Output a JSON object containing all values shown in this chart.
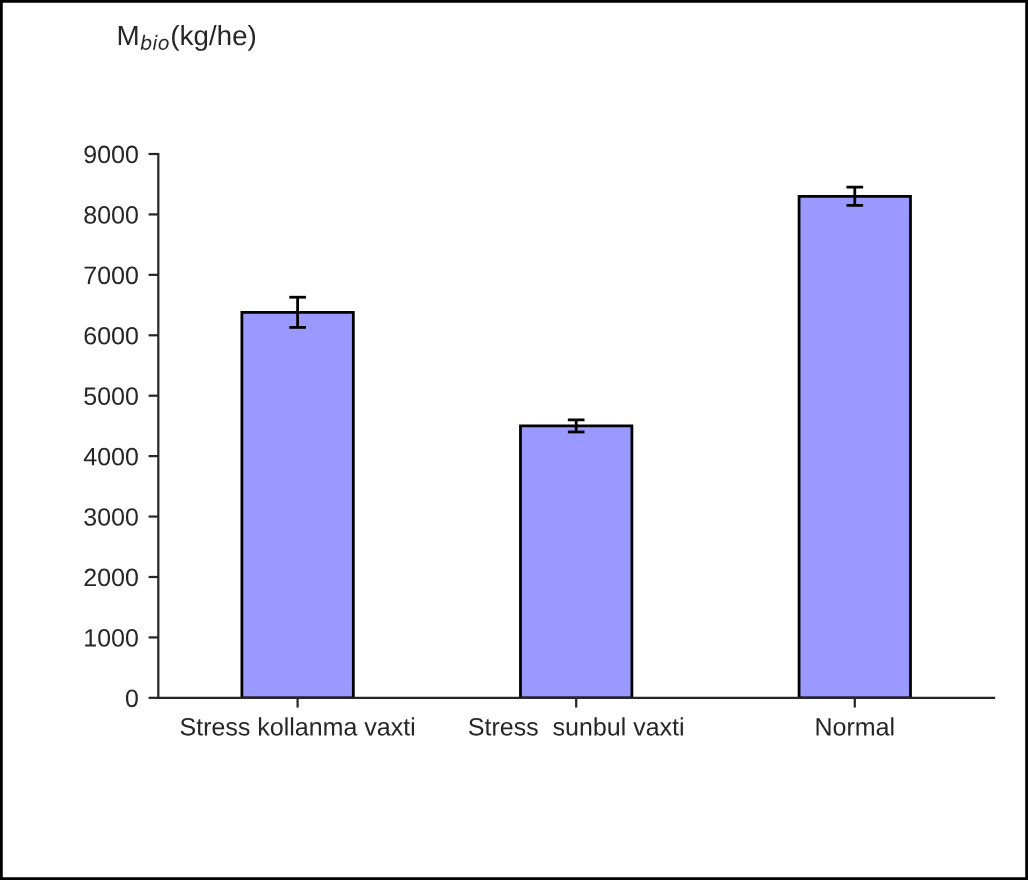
{
  "chart_data": {
    "type": "bar",
    "ylabel": "M$_{bio}$(kg/he)",
    "categories": [
      "Stress kollanma vaxti",
      "Stress  sunbul vaxti",
      "Normal"
    ],
    "values": [
      6380,
      4500,
      8300
    ],
    "errors": [
      250,
      100,
      150
    ],
    "color": "#9999ff",
    "ylim": [
      0,
      9000
    ],
    "yticks": [
      0,
      1000,
      2000,
      3000,
      4000,
      5000,
      6000,
      7000,
      8000,
      9000
    ],
    "grid": false,
    "legend": false
  }
}
